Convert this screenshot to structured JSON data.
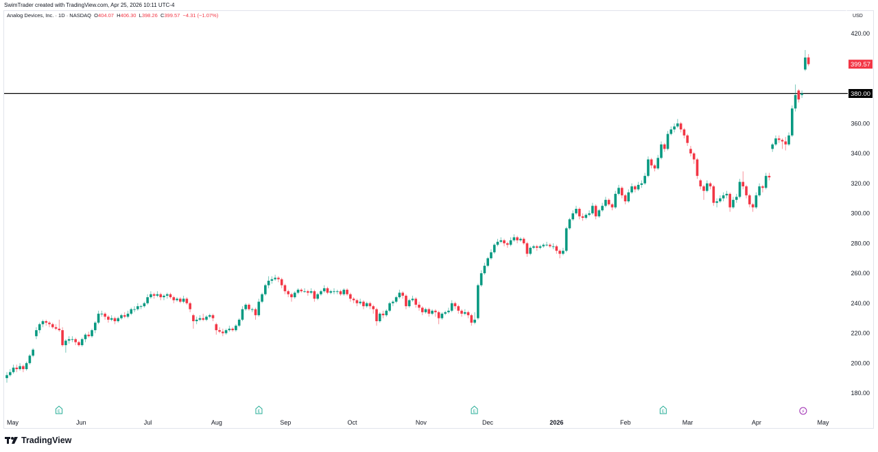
{
  "header": {
    "credit": "SwimTrader created with TradingView.com, Apr 25, 2026 10:11 UTC-4",
    "symbol": "Analog Devices, Inc. · 1D · NASDAQ",
    "o_label": "O",
    "o_value": "404.07",
    "h_label": "H",
    "h_value": "406.30",
    "l_label": "L",
    "l_value": "398.26",
    "c_label": "C",
    "c_value": "399.57",
    "change": "−4.31 (−1.07%)",
    "currency": "USD"
  },
  "footer": {
    "brand": "TradingView"
  },
  "colors": {
    "up": "#089981",
    "down": "#f23645",
    "line": "#000000",
    "earnings": "#22ab94",
    "dividend": "#9c27b0"
  },
  "chart_data": {
    "type": "candlestick",
    "ylim": [
      170,
      430
    ],
    "y_ticks": [
      "180.00",
      "200.00",
      "220.00",
      "240.00",
      "260.00",
      "280.00",
      "300.00",
      "320.00",
      "340.00",
      "360.00",
      "380.00",
      "400.00",
      "420.00"
    ],
    "x_ticks": [
      {
        "label": "May",
        "date": "2025-05-01"
      },
      {
        "label": "Jun",
        "date": "2025-06-01"
      },
      {
        "label": "Jul",
        "date": "2025-07-01"
      },
      {
        "label": "Aug",
        "date": "2025-08-01"
      },
      {
        "label": "Sep",
        "date": "2025-09-01"
      },
      {
        "label": "Oct",
        "date": "2025-10-01"
      },
      {
        "label": "Nov",
        "date": "2025-11-01"
      },
      {
        "label": "Dec",
        "date": "2025-12-01"
      },
      {
        "label": "2026",
        "date": "2026-01-01",
        "bold": true
      },
      {
        "label": "Feb",
        "date": "2026-02-01"
      },
      {
        "label": "Mar",
        "date": "2026-03-01"
      },
      {
        "label": "Apr",
        "date": "2026-04-01"
      },
      {
        "label": "May",
        "date": "2026-05-01"
      }
    ],
    "horizontal_line": {
      "value": 380.0,
      "label": "380.00"
    },
    "last_price": {
      "value": 399.57,
      "label": "399.57"
    },
    "events": [
      {
        "type": "earnings",
        "label": "E",
        "date": "2025-05-22"
      },
      {
        "type": "earnings",
        "label": "E",
        "date": "2025-08-20"
      },
      {
        "type": "earnings",
        "label": "E",
        "date": "2025-11-25"
      },
      {
        "type": "earnings",
        "label": "E",
        "date": "2026-02-18"
      },
      {
        "type": "dividend",
        "label": "⚡",
        "date": "2026-04-22"
      }
    ],
    "ohlc": [
      [
        190,
        194,
        187,
        192
      ],
      [
        192,
        196,
        191,
        194
      ],
      [
        194,
        199,
        193,
        197
      ],
      [
        197,
        199,
        194,
        196
      ],
      [
        196,
        200,
        195,
        198
      ],
      [
        198,
        199,
        194,
        196
      ],
      [
        196,
        201,
        195,
        200
      ],
      [
        200,
        206,
        199,
        205
      ],
      [
        205,
        210,
        204,
        209
      ],
      [
        218,
        224,
        216,
        222
      ],
      [
        222,
        227,
        220,
        226
      ],
      [
        226,
        229,
        224,
        228
      ],
      [
        228,
        229,
        225,
        227
      ],
      [
        227,
        228,
        224,
        226
      ],
      [
        226,
        227,
        223,
        224
      ],
      [
        224,
        226,
        222,
        223
      ],
      [
        223,
        229,
        221,
        222
      ],
      [
        222,
        224,
        211,
        212
      ],
      [
        212,
        216,
        207,
        215
      ],
      [
        215,
        218,
        213,
        216
      ],
      [
        216,
        218,
        214,
        216
      ],
      [
        216,
        217,
        212,
        214
      ],
      [
        214,
        215,
        211,
        212
      ],
      [
        212,
        217,
        211,
        216
      ],
      [
        216,
        220,
        214,
        219
      ],
      [
        219,
        221,
        217,
        218
      ],
      [
        218,
        223,
        217,
        222
      ],
      [
        222,
        228,
        220,
        227
      ],
      [
        227,
        235,
        226,
        233
      ],
      [
        233,
        235,
        231,
        233
      ],
      [
        233,
        234,
        229,
        231
      ],
      [
        231,
        232,
        227,
        229
      ],
      [
        229,
        232,
        228,
        230
      ],
      [
        230,
        231,
        226,
        228
      ],
      [
        228,
        231,
        227,
        230
      ],
      [
        230,
        233,
        229,
        232
      ],
      [
        232,
        234,
        230,
        231
      ],
      [
        231,
        235,
        230,
        233
      ],
      [
        233,
        237,
        232,
        236
      ],
      [
        236,
        238,
        234,
        236
      ],
      [
        236,
        240,
        235,
        238
      ],
      [
        238,
        239,
        236,
        238
      ],
      [
        238,
        241,
        237,
        240
      ],
      [
        240,
        246,
        239,
        244
      ],
      [
        244,
        248,
        243,
        246
      ],
      [
        246,
        247,
        243,
        245
      ],
      [
        245,
        248,
        244,
        246
      ],
      [
        246,
        247,
        242,
        244
      ],
      [
        244,
        246,
        242,
        245
      ],
      [
        245,
        247,
        243,
        246
      ],
      [
        246,
        247,
        243,
        244
      ],
      [
        244,
        245,
        240,
        242
      ],
      [
        242,
        244,
        241,
        243
      ],
      [
        243,
        244,
        240,
        241
      ],
      [
        241,
        245,
        240,
        243
      ],
      [
        243,
        244,
        239,
        240
      ],
      [
        240,
        241,
        234,
        236
      ],
      [
        232,
        233,
        223,
        228
      ],
      [
        228,
        231,
        226,
        229
      ],
      [
        229,
        232,
        228,
        230
      ],
      [
        230,
        233,
        228,
        229
      ],
      [
        229,
        232,
        228,
        231
      ],
      [
        231,
        233,
        230,
        232
      ],
      [
        232,
        233,
        228,
        230
      ],
      [
        226,
        227,
        219,
        222
      ],
      [
        222,
        224,
        220,
        221
      ],
      [
        221,
        223,
        218,
        220
      ],
      [
        220,
        223,
        219,
        222
      ],
      [
        222,
        225,
        221,
        223
      ],
      [
        223,
        224,
        221,
        222
      ],
      [
        222,
        226,
        221,
        225
      ],
      [
        225,
        230,
        224,
        229
      ],
      [
        229,
        238,
        228,
        236
      ],
      [
        236,
        240,
        235,
        239
      ],
      [
        239,
        240,
        235,
        236
      ],
      [
        236,
        237,
        234,
        236
      ],
      [
        236,
        237,
        229,
        232
      ],
      [
        232,
        243,
        231,
        241
      ],
      [
        241,
        247,
        240,
        246
      ],
      [
        246,
        253,
        245,
        252
      ],
      [
        252,
        258,
        250,
        255
      ],
      [
        255,
        258,
        253,
        256
      ],
      [
        256,
        259,
        255,
        257
      ],
      [
        257,
        258,
        254,
        256
      ],
      [
        256,
        257,
        250,
        252
      ],
      [
        252,
        253,
        246,
        248
      ],
      [
        248,
        249,
        244,
        246
      ],
      [
        246,
        247,
        241,
        244
      ],
      [
        244,
        248,
        243,
        247
      ],
      [
        247,
        250,
        246,
        249
      ],
      [
        249,
        250,
        247,
        248
      ],
      [
        248,
        250,
        247,
        248
      ],
      [
        248,
        249,
        245,
        247
      ],
      [
        247,
        250,
        246,
        248
      ],
      [
        248,
        249,
        241,
        243
      ],
      [
        243,
        247,
        242,
        246
      ],
      [
        246,
        249,
        245,
        248
      ],
      [
        248,
        252,
        247,
        250
      ],
      [
        250,
        251,
        246,
        247
      ],
      [
        247,
        249,
        246,
        248
      ],
      [
        248,
        250,
        246,
        248
      ],
      [
        248,
        249,
        246,
        248
      ],
      [
        248,
        249,
        245,
        246
      ],
      [
        246,
        250,
        245,
        249
      ],
      [
        249,
        250,
        245,
        246
      ],
      [
        246,
        247,
        241,
        243
      ],
      [
        243,
        244,
        240,
        242
      ],
      [
        242,
        243,
        238,
        240
      ],
      [
        240,
        243,
        239,
        241
      ],
      [
        241,
        242,
        236,
        238
      ],
      [
        238,
        241,
        237,
        240
      ],
      [
        240,
        241,
        236,
        238
      ],
      [
        238,
        239,
        233,
        236
      ],
      [
        236,
        237,
        225,
        228
      ],
      [
        228,
        234,
        227,
        233
      ],
      [
        233,
        235,
        230,
        232
      ],
      [
        232,
        236,
        231,
        235
      ],
      [
        235,
        241,
        234,
        240
      ],
      [
        240,
        242,
        238,
        241
      ],
      [
        241,
        245,
        240,
        244
      ],
      [
        244,
        249,
        243,
        247
      ],
      [
        247,
        248,
        243,
        245
      ],
      [
        245,
        246,
        236,
        238
      ],
      [
        238,
        243,
        237,
        242
      ],
      [
        242,
        245,
        241,
        243
      ],
      [
        243,
        244,
        237,
        239
      ],
      [
        239,
        241,
        235,
        237
      ],
      [
        237,
        238,
        232,
        234
      ],
      [
        234,
        237,
        233,
        236
      ],
      [
        236,
        237,
        231,
        233
      ],
      [
        233,
        236,
        232,
        235
      ],
      [
        235,
        236,
        231,
        234
      ],
      [
        234,
        235,
        226,
        230
      ],
      [
        230,
        234,
        229,
        233
      ],
      [
        233,
        235,
        232,
        234
      ],
      [
        234,
        237,
        233,
        235
      ],
      [
        235,
        242,
        234,
        240
      ],
      [
        240,
        241,
        236,
        238
      ],
      [
        238,
        239,
        233,
        235
      ],
      [
        235,
        236,
        231,
        233
      ],
      [
        233,
        236,
        232,
        234
      ],
      [
        234,
        235,
        230,
        232
      ],
      [
        232,
        233,
        225,
        227
      ],
      [
        227,
        234,
        226,
        229
      ],
      [
        230,
        253,
        229,
        252
      ],
      [
        252,
        262,
        251,
        260
      ],
      [
        260,
        267,
        259,
        265
      ],
      [
        265,
        271,
        264,
        270
      ],
      [
        270,
        276,
        269,
        274
      ],
      [
        274,
        280,
        273,
        279
      ],
      [
        279,
        283,
        278,
        281
      ],
      [
        281,
        284,
        280,
        282
      ],
      [
        282,
        283,
        278,
        280
      ],
      [
        280,
        281,
        277,
        279
      ],
      [
        279,
        284,
        278,
        282
      ],
      [
        282,
        286,
        281,
        284
      ],
      [
        284,
        285,
        280,
        282
      ],
      [
        282,
        284,
        281,
        283
      ],
      [
        283,
        284,
        279,
        280
      ],
      [
        280,
        281,
        271,
        273
      ],
      [
        273,
        278,
        272,
        277
      ],
      [
        277,
        279,
        276,
        278
      ],
      [
        278,
        279,
        275,
        277
      ],
      [
        277,
        279,
        276,
        278
      ],
      [
        278,
        280,
        277,
        279
      ],
      [
        279,
        281,
        278,
        279
      ],
      [
        279,
        280,
        277,
        278
      ],
      [
        278,
        280,
        276,
        278
      ],
      [
        278,
        279,
        273,
        275
      ],
      [
        275,
        276,
        270,
        273
      ],
      [
        273,
        277,
        272,
        275
      ],
      [
        275,
        291,
        274,
        290
      ],
      [
        290,
        297,
        289,
        296
      ],
      [
        296,
        302,
        295,
        300
      ],
      [
        300,
        305,
        299,
        303
      ],
      [
        303,
        304,
        296,
        298
      ],
      [
        298,
        300,
        295,
        297
      ],
      [
        297,
        300,
        296,
        299
      ],
      [
        299,
        302,
        298,
        300
      ],
      [
        300,
        307,
        299,
        305
      ],
      [
        305,
        306,
        296,
        298
      ],
      [
        298,
        303,
        297,
        302
      ],
      [
        302,
        307,
        301,
        305
      ],
      [
        305,
        311,
        304,
        309
      ],
      [
        309,
        310,
        305,
        306
      ],
      [
        306,
        307,
        302,
        304
      ],
      [
        304,
        315,
        303,
        313
      ],
      [
        313,
        319,
        312,
        317
      ],
      [
        317,
        318,
        310,
        312
      ],
      [
        312,
        313,
        306,
        308
      ],
      [
        308,
        316,
        307,
        314
      ],
      [
        314,
        320,
        313,
        318
      ],
      [
        318,
        319,
        314,
        316
      ],
      [
        316,
        321,
        315,
        319
      ],
      [
        319,
        322,
        317,
        320
      ],
      [
        320,
        327,
        319,
        325
      ],
      [
        325,
        338,
        324,
        336
      ],
      [
        336,
        337,
        330,
        332
      ],
      [
        332,
        333,
        328,
        330
      ],
      [
        330,
        339,
        329,
        337
      ],
      [
        337,
        348,
        336,
        346
      ],
      [
        346,
        347,
        341,
        343
      ],
      [
        343,
        355,
        342,
        353
      ],
      [
        353,
        358,
        352,
        356
      ],
      [
        356,
        360,
        354,
        358
      ],
      [
        358,
        363,
        357,
        360
      ],
      [
        360,
        361,
        354,
        356
      ],
      [
        356,
        357,
        350,
        352
      ],
      [
        352,
        353,
        345,
        347
      ],
      [
        343,
        345,
        338,
        340
      ],
      [
        340,
        341,
        333,
        336
      ],
      [
        336,
        337,
        323,
        325
      ],
      [
        322,
        323,
        316,
        318
      ],
      [
        318,
        319,
        309,
        315
      ],
      [
        315,
        322,
        314,
        320
      ],
      [
        320,
        321,
        316,
        318
      ],
      [
        318,
        319,
        305,
        307
      ],
      [
        307,
        310,
        304,
        308
      ],
      [
        308,
        312,
        307,
        310
      ],
      [
        310,
        314,
        308,
        312
      ],
      [
        312,
        315,
        310,
        313
      ],
      [
        313,
        314,
        301,
        304
      ],
      [
        304,
        311,
        303,
        309
      ],
      [
        309,
        313,
        307,
        311
      ],
      [
        311,
        323,
        310,
        321
      ],
      [
        321,
        328,
        316,
        318
      ],
      [
        318,
        319,
        310,
        312
      ],
      [
        312,
        313,
        304,
        306
      ],
      [
        306,
        307,
        301,
        304
      ],
      [
        304,
        314,
        303,
        312
      ],
      [
        312,
        320,
        311,
        318
      ],
      [
        318,
        319,
        314,
        317
      ],
      [
        317,
        327,
        316,
        325
      ],
      [
        325,
        327,
        322,
        324
      ],
      [
        343,
        347,
        341,
        346
      ],
      [
        346,
        352,
        345,
        350
      ],
      [
        350,
        352,
        347,
        349
      ],
      [
        349,
        350,
        343,
        348
      ],
      [
        348,
        351,
        342,
        346
      ],
      [
        346,
        354,
        345,
        352
      ],
      [
        352,
        372,
        351,
        370
      ],
      [
        370,
        386,
        368,
        379
      ],
      [
        382,
        383,
        374,
        376
      ],
      [
        379,
        382,
        377,
        380
      ],
      [
        396,
        409,
        395,
        404
      ],
      [
        404.07,
        406.3,
        398.26,
        399.57
      ]
    ]
  }
}
